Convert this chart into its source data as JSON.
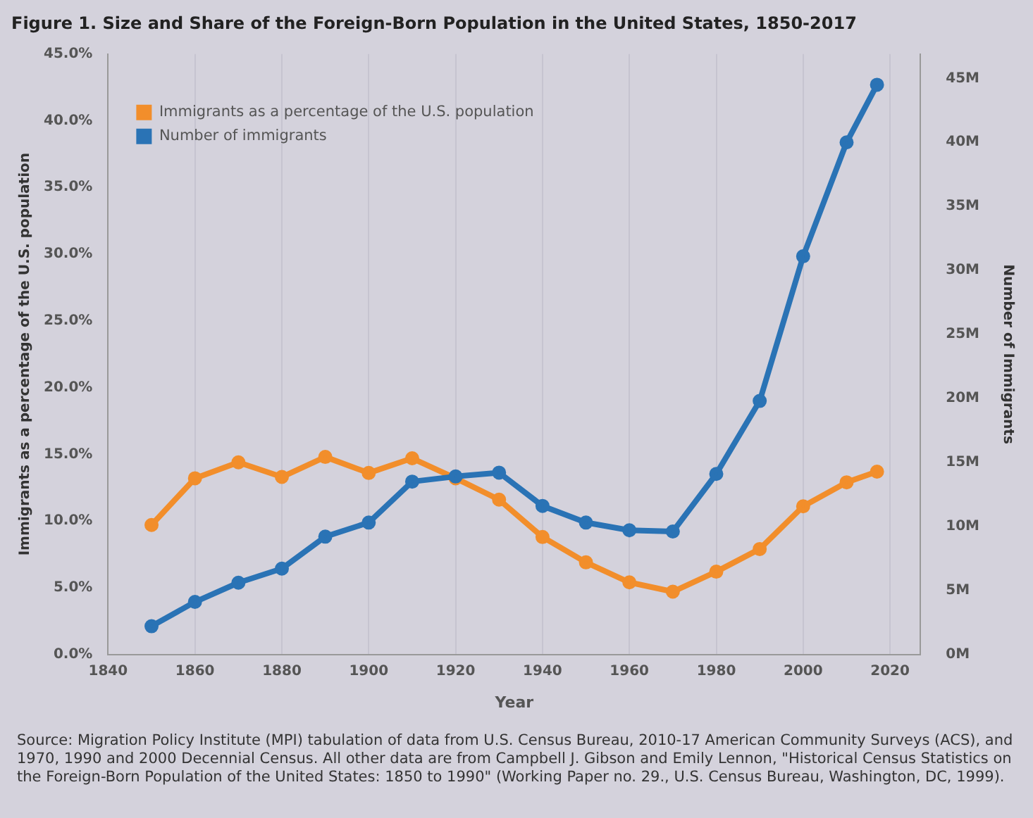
{
  "chart_data": {
    "type": "line",
    "title": "Figure 1. Size and Share of the Foreign-Born Population in the United States, 1850-2017",
    "xlabel": "Year",
    "ylabel": "Immigrants as a percentage of the U.S. population",
    "y2label": "Number of Immigrants",
    "x": [
      1850,
      1860,
      1870,
      1880,
      1890,
      1900,
      1910,
      1920,
      1930,
      1940,
      1950,
      1960,
      1970,
      1980,
      1990,
      2000,
      2010,
      2017
    ],
    "series": [
      {
        "name": "Immigrants as a percentage of the U.S. population",
        "color": "#f28e2b",
        "values": [
          9.7,
          13.2,
          14.4,
          13.3,
          14.8,
          13.6,
          14.7,
          13.2,
          11.6,
          8.8,
          6.9,
          5.4,
          4.7,
          6.2,
          7.9,
          11.1,
          12.9,
          13.7
        ]
      },
      {
        "name": "Number of immigrants",
        "color": "#2a73b5",
        "axis": "y2",
        "values": [
          2.2,
          4.1,
          5.6,
          6.7,
          9.2,
          10.3,
          13.5,
          13.9,
          14.2,
          11.6,
          10.3,
          9.7,
          9.6,
          14.1,
          19.8,
          31.1,
          40.0,
          44.5
        ]
      }
    ],
    "xlim": [
      1840,
      2027
    ],
    "xticks": [
      1840,
      1860,
      1880,
      1900,
      1920,
      1940,
      1960,
      1980,
      2000,
      2020
    ],
    "ylim": [
      0,
      45
    ],
    "yticks": [
      {
        "value": 0,
        "label": "0.0%"
      },
      {
        "value": 5,
        "label": "5.0%"
      },
      {
        "value": 10,
        "label": "10.0%"
      },
      {
        "value": 15,
        "label": "15.0%"
      },
      {
        "value": 20,
        "label": "20.0%"
      },
      {
        "value": 25,
        "label": "25.0%"
      },
      {
        "value": 30,
        "label": "30.0%"
      },
      {
        "value": 35,
        "label": "35.0%"
      },
      {
        "value": 40,
        "label": "40.0%"
      },
      {
        "value": 45,
        "label": "45.0%"
      }
    ],
    "y2lim": [
      0,
      46.9
    ],
    "y2ticks": [
      {
        "value": 0,
        "label": "0M"
      },
      {
        "value": 5,
        "label": "5M"
      },
      {
        "value": 10,
        "label": "10M"
      },
      {
        "value": 15,
        "label": "15M"
      },
      {
        "value": 20,
        "label": "20M"
      },
      {
        "value": 25,
        "label": "25M"
      },
      {
        "value": 30,
        "label": "30M"
      },
      {
        "value": 35,
        "label": "35M"
      },
      {
        "value": 40,
        "label": "40M"
      },
      {
        "value": 45,
        "label": "45M"
      }
    ],
    "grid": "x",
    "legend": "top left",
    "marker": "circle",
    "line_style": "solid",
    "annotations": [
      "Source: Migration Policy Institute (MPI) tabulation of data from U.S. Census Bureau, 2010-17 American Community Surveys (ACS), and 1970, 1990 and 2000 Decennial Census. All other data are from Campbell J. Gibson and Emily Lennon, \"Historical Census Statistics on the Foreign-Born Population of the United States: 1850 to 1990\" (Working Paper no. 29., U.S. Census Bureau, Washington, DC, 1999)."
    ]
  }
}
